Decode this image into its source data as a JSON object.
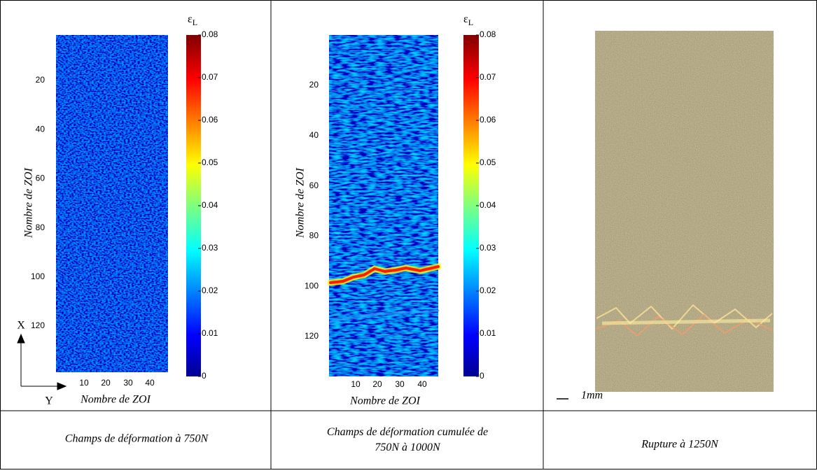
{
  "panels": [
    {
      "colorbar_label": "ε",
      "colorbar_label_sub": "L",
      "y_label": "Nombre de ZOI",
      "x_label": "Nombre de ZOI",
      "y_ticks": [
        20,
        40,
        60,
        80,
        100,
        120
      ],
      "x_ticks": [
        10,
        20,
        30,
        40
      ],
      "colorbar_ticks": [
        0,
        0.01,
        0.02,
        0.03,
        0.04,
        0.05,
        0.06,
        0.07,
        0.08
      ],
      "axis_x": "X",
      "axis_y": "Y"
    },
    {
      "colorbar_label": "ε",
      "colorbar_label_sub": "L",
      "y_label": "Nombre de ZOI",
      "x_label": "Nombre de ZOI",
      "y_ticks": [
        20,
        40,
        60,
        80,
        100,
        120
      ],
      "x_ticks": [
        10,
        20,
        30,
        40
      ],
      "colorbar_ticks": [
        0,
        0.01,
        0.02,
        0.03,
        0.04,
        0.05,
        0.06,
        0.07,
        0.08
      ]
    }
  ],
  "photo": {
    "scale_label": "1mm"
  },
  "captions": [
    "Champs de déformation à 750N",
    "Champs de déformation cumulée de 750N à 1000N",
    "Rupture à 1250N"
  ]
}
